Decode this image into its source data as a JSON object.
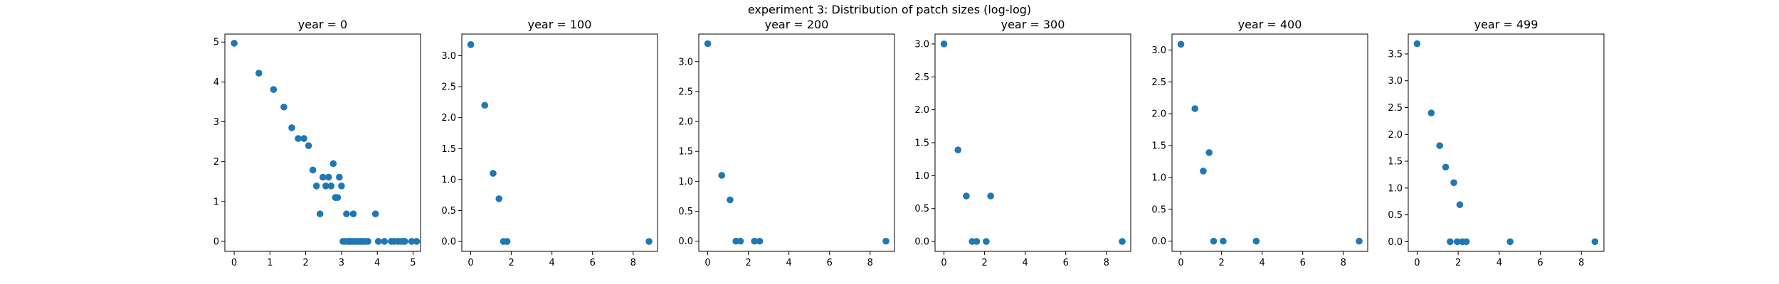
{
  "suptitle": "experiment 3: Distribution of patch sizes (log-log)",
  "colors": {
    "marker": "#1f77b4",
    "axes": "#000000",
    "background": "#ffffff"
  },
  "chart_data": [
    {
      "type": "scatter",
      "title": "year = 0",
      "xlabel": "",
      "ylabel": "",
      "xlim": [
        -0.26,
        5.21
      ],
      "ylim": [
        -0.25,
        5.2
      ],
      "xticks": [
        0,
        1,
        2,
        3,
        4,
        5
      ],
      "yticks": [
        0,
        1,
        2,
        3,
        4,
        5
      ],
      "grid": false,
      "points": [
        [
          0,
          4.97
        ],
        [
          0.69,
          4.22
        ],
        [
          1.1,
          3.81
        ],
        [
          1.39,
          3.37
        ],
        [
          1.61,
          2.85
        ],
        [
          1.79,
          2.58
        ],
        [
          1.95,
          2.58
        ],
        [
          2.08,
          2.4
        ],
        [
          2.2,
          1.79
        ],
        [
          2.3,
          1.39
        ],
        [
          2.4,
          0.69
        ],
        [
          2.48,
          1.61
        ],
        [
          2.56,
          1.39
        ],
        [
          2.64,
          1.61
        ],
        [
          2.71,
          1.39
        ],
        [
          2.77,
          1.95
        ],
        [
          2.83,
          1.1
        ],
        [
          2.89,
          1.1
        ],
        [
          2.94,
          1.61
        ],
        [
          3.0,
          1.39
        ],
        [
          3.04,
          0
        ],
        [
          3.09,
          0
        ],
        [
          3.14,
          0.69
        ],
        [
          3.18,
          0
        ],
        [
          3.22,
          0
        ],
        [
          3.26,
          0
        ],
        [
          3.3,
          0
        ],
        [
          3.33,
          0.69
        ],
        [
          3.37,
          0
        ],
        [
          3.4,
          0
        ],
        [
          3.47,
          0
        ],
        [
          3.53,
          0
        ],
        [
          3.58,
          0
        ],
        [
          3.66,
          0
        ],
        [
          3.74,
          0
        ],
        [
          3.95,
          0.69
        ],
        [
          4.03,
          0
        ],
        [
          4.2,
          0
        ],
        [
          4.39,
          0
        ],
        [
          4.47,
          0
        ],
        [
          4.57,
          0
        ],
        [
          4.64,
          0
        ],
        [
          4.72,
          0
        ],
        [
          4.77,
          0
        ],
        [
          4.96,
          0
        ],
        [
          5.1,
          0
        ]
      ]
    },
    {
      "type": "scatter",
      "title": "year = 100",
      "xlabel": "",
      "ylabel": "",
      "xlim": [
        -0.44,
        9.2
      ],
      "ylim": [
        -0.16,
        3.35
      ],
      "xticks": [
        0,
        2,
        4,
        6,
        8
      ],
      "yticks": [
        0.0,
        0.5,
        1.0,
        1.5,
        2.0,
        2.5,
        3.0
      ],
      "grid": false,
      "points": [
        [
          0,
          3.18
        ],
        [
          0.69,
          2.2
        ],
        [
          1.1,
          1.1
        ],
        [
          1.39,
          0.69
        ],
        [
          1.61,
          0
        ],
        [
          1.79,
          0
        ],
        [
          8.78,
          0
        ]
      ]
    },
    {
      "type": "scatter",
      "title": "year = 200",
      "xlabel": "",
      "ylabel": "",
      "xlim": [
        -0.44,
        9.2
      ],
      "ylim": [
        -0.17,
        3.46
      ],
      "xticks": [
        0,
        2,
        4,
        6,
        8
      ],
      "yticks": [
        0.0,
        0.5,
        1.0,
        1.5,
        2.0,
        2.5,
        3.0
      ],
      "grid": false,
      "points": [
        [
          0,
          3.3
        ],
        [
          0.69,
          1.1
        ],
        [
          1.1,
          0.69
        ],
        [
          1.39,
          0
        ],
        [
          1.61,
          0
        ],
        [
          2.3,
          0
        ],
        [
          2.56,
          0
        ],
        [
          8.78,
          0
        ]
      ]
    },
    {
      "type": "scatter",
      "title": "year = 300",
      "xlabel": "",
      "ylabel": "",
      "xlim": [
        -0.44,
        9.2
      ],
      "ylim": [
        -0.15,
        3.15
      ],
      "xticks": [
        0,
        2,
        4,
        6,
        8
      ],
      "yticks": [
        0.0,
        0.5,
        1.0,
        1.5,
        2.0,
        2.5,
        3.0
      ],
      "grid": false,
      "points": [
        [
          0,
          3.0
        ],
        [
          0.69,
          1.39
        ],
        [
          1.1,
          0.69
        ],
        [
          1.39,
          0
        ],
        [
          1.61,
          0
        ],
        [
          2.08,
          0
        ],
        [
          2.3,
          0.69
        ],
        [
          8.78,
          0
        ]
      ]
    },
    {
      "type": "scatter",
      "title": "year = 400",
      "xlabel": "",
      "ylabel": "",
      "xlim": [
        -0.44,
        9.2
      ],
      "ylim": [
        -0.16,
        3.25
      ],
      "xticks": [
        0,
        2,
        4,
        6,
        8
      ],
      "yticks": [
        0.0,
        0.5,
        1.0,
        1.5,
        2.0,
        2.5,
        3.0
      ],
      "grid": false,
      "points": [
        [
          0,
          3.09
        ],
        [
          0.69,
          2.08
        ],
        [
          1.1,
          1.1
        ],
        [
          1.39,
          1.39
        ],
        [
          1.61,
          0
        ],
        [
          2.08,
          0
        ],
        [
          3.71,
          0
        ],
        [
          8.78,
          0
        ]
      ]
    },
    {
      "type": "scatter",
      "title": "year = 499",
      "xlabel": "",
      "ylabel": "",
      "xlim": [
        -0.43,
        9.1
      ],
      "ylim": [
        -0.18,
        3.87
      ],
      "xticks": [
        0,
        2,
        4,
        6,
        8
      ],
      "yticks": [
        0.0,
        0.5,
        1.0,
        1.5,
        2.0,
        2.5,
        3.0,
        3.5
      ],
      "grid": false,
      "points": [
        [
          0,
          3.69
        ],
        [
          0.69,
          2.4
        ],
        [
          1.1,
          1.79
        ],
        [
          1.39,
          1.39
        ],
        [
          1.61,
          0
        ],
        [
          1.79,
          1.1
        ],
        [
          1.95,
          0
        ],
        [
          2.08,
          0.69
        ],
        [
          2.2,
          0
        ],
        [
          2.4,
          0
        ],
        [
          4.53,
          0
        ],
        [
          8.66,
          0
        ]
      ]
    }
  ]
}
